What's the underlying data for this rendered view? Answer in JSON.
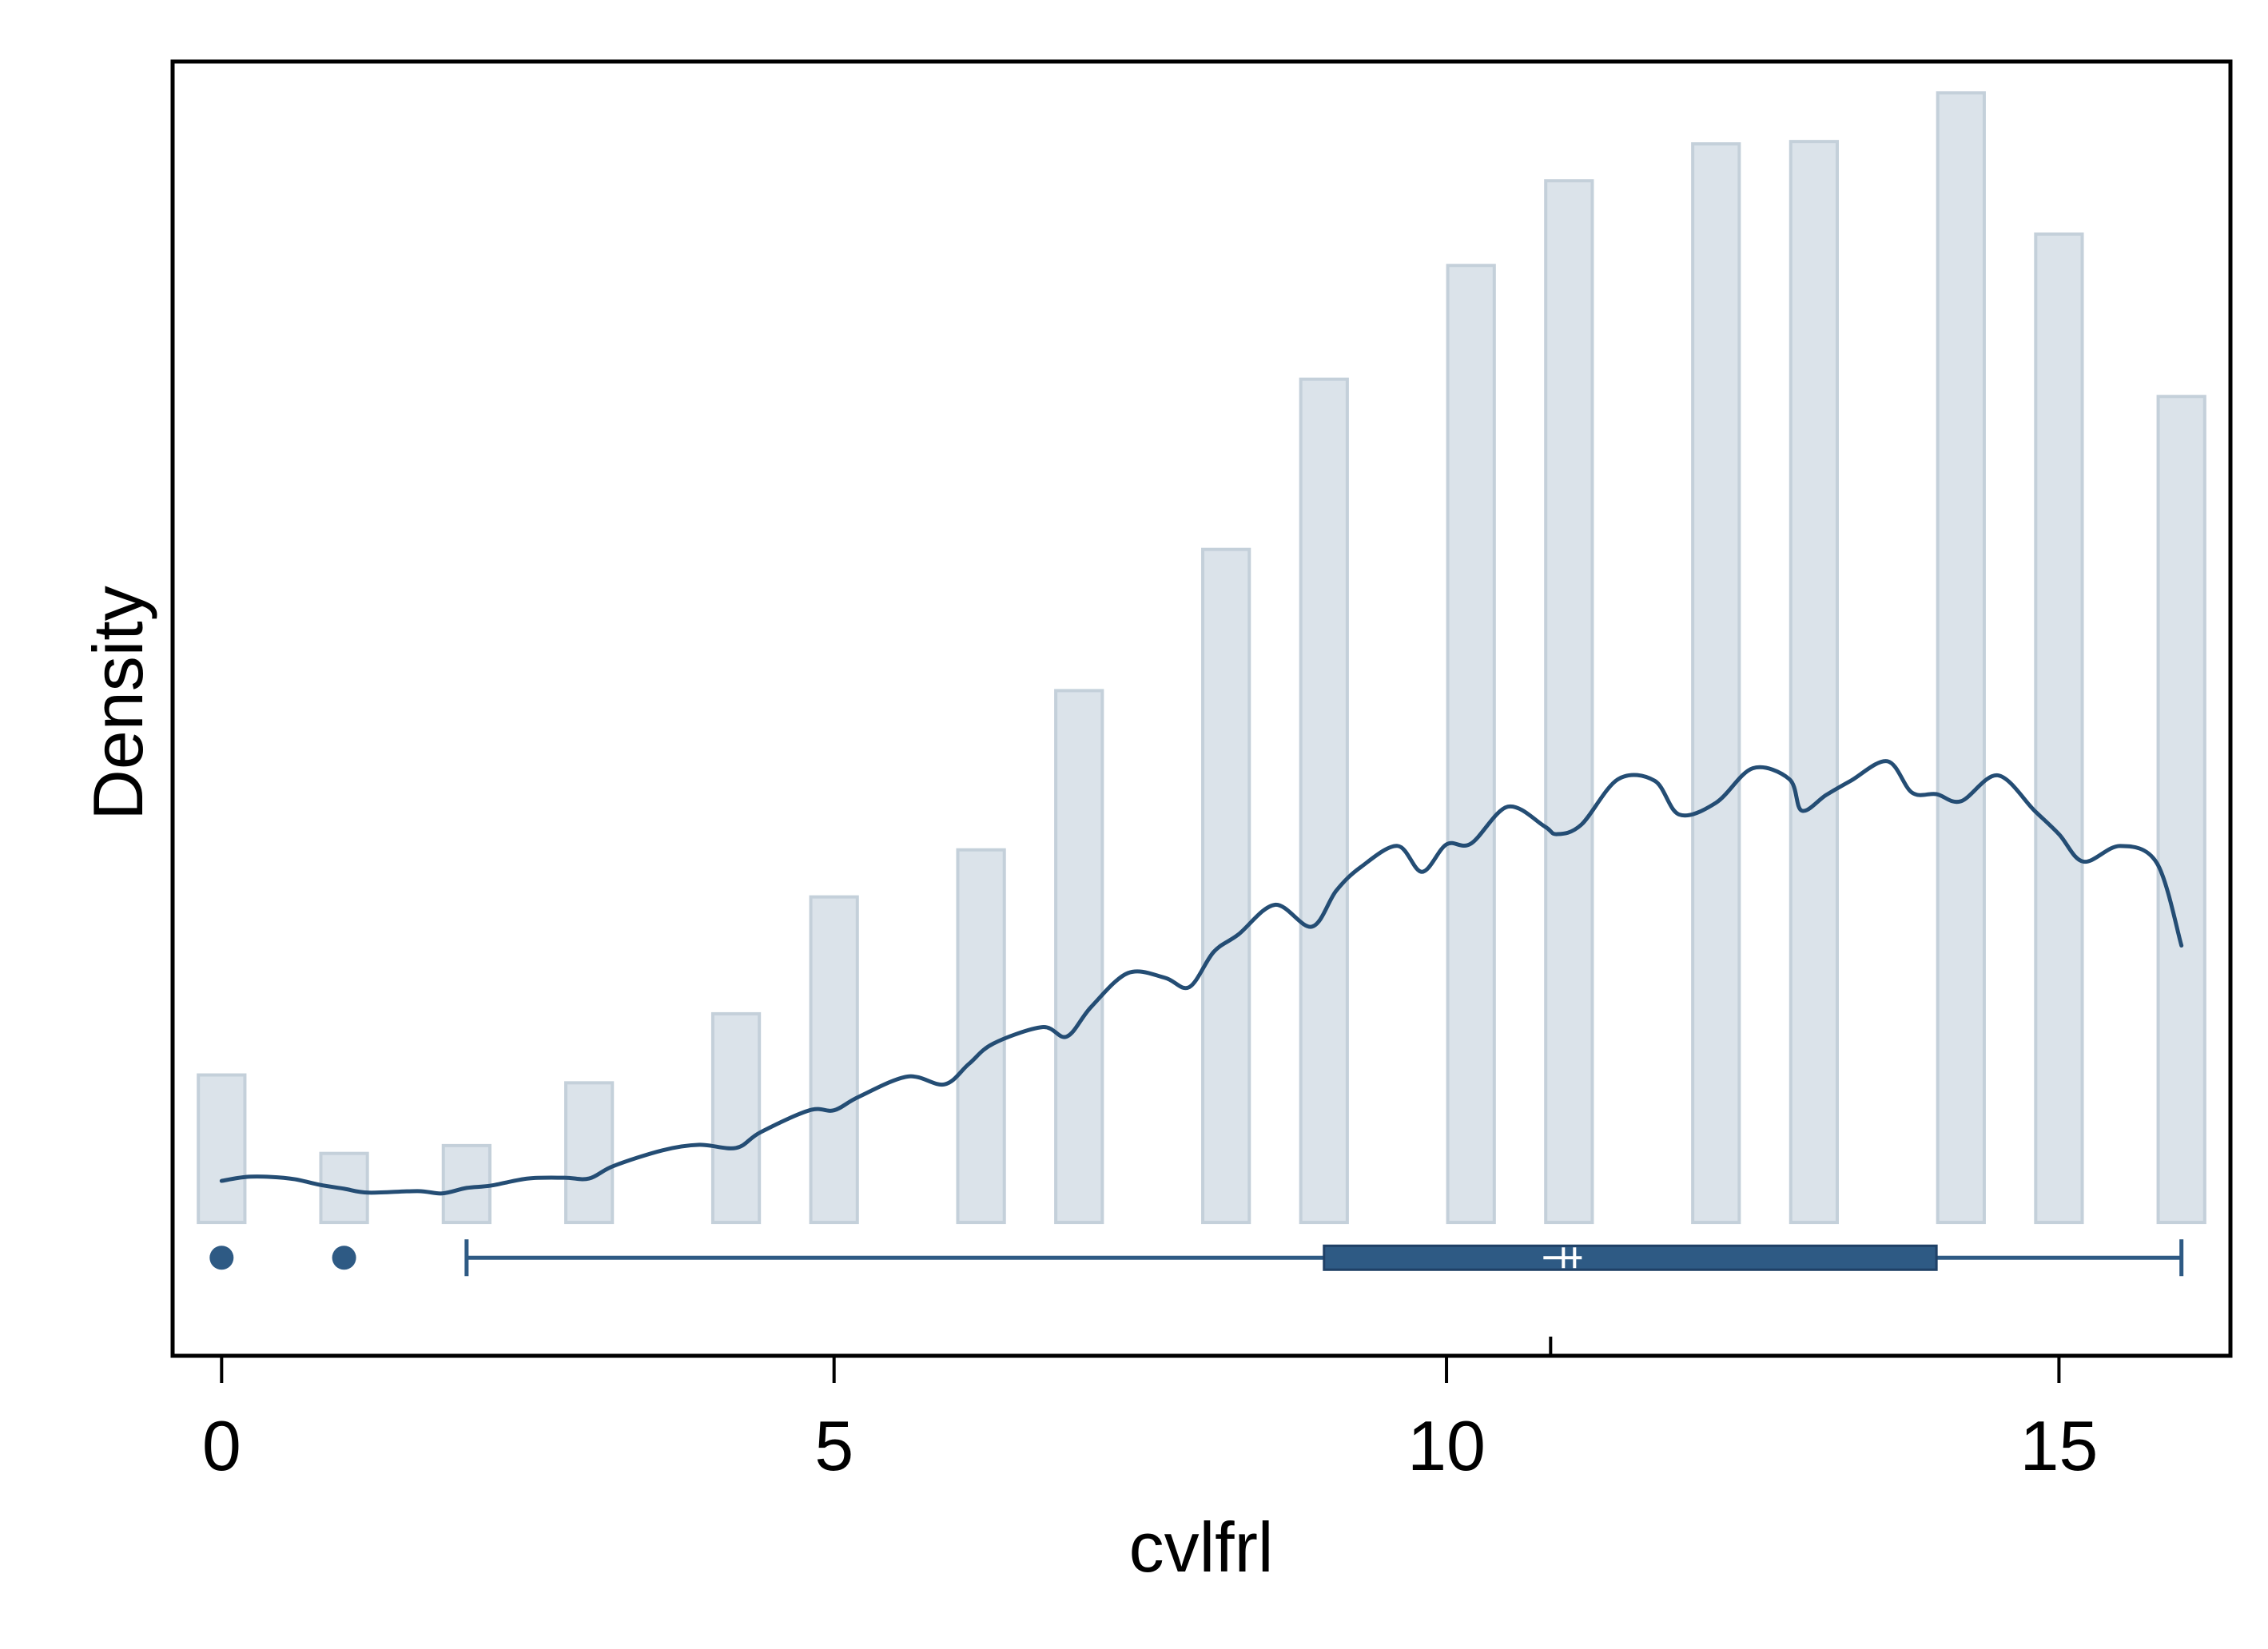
{
  "chart_data": {
    "type": "bar",
    "title": "",
    "xlabel": "cvlfrl",
    "ylabel": "Density",
    "xlim": [
      -0.4,
      16.4
    ],
    "ylim": [
      -0.017,
      0.148
    ],
    "x_ticks": [
      "0",
      "5",
      "10",
      "15"
    ],
    "x_tick_values": [
      0,
      5,
      10,
      15
    ],
    "histogram": {
      "x": [
        0,
        1,
        2,
        3,
        4.2,
        5,
        6.2,
        7,
        8.2,
        9,
        10.2,
        11,
        12.2,
        13,
        14.2,
        15,
        16
      ],
      "density": [
        0.0188,
        0.0088,
        0.0098,
        0.0178,
        0.0266,
        0.0415,
        0.0475,
        0.0678,
        0.0858,
        0.1075,
        0.122,
        0.1328,
        0.1375,
        0.1378,
        0.144,
        0.126,
        0.1053
      ],
      "fill": "#dbe3ea",
      "edge": "#c4d0da"
    },
    "density_curve": {
      "color": "#244d74",
      "points": [
        [
          0,
          0.0053
        ],
        [
          0.2,
          0.0058
        ],
        [
          0.4,
          0.0058
        ],
        [
          0.6,
          0.0055
        ],
        [
          0.8,
          0.0048
        ],
        [
          1.0,
          0.0043
        ],
        [
          1.2,
          0.0038
        ],
        [
          1.6,
          0.004
        ],
        [
          1.8,
          0.0037
        ],
        [
          2.0,
          0.0044
        ],
        [
          2.2,
          0.0047
        ],
        [
          2.5,
          0.0056
        ],
        [
          2.8,
          0.0057
        ],
        [
          3.0,
          0.0056
        ],
        [
          3.2,
          0.0072
        ],
        [
          3.6,
          0.0092
        ],
        [
          3.9,
          0.0099
        ],
        [
          4.2,
          0.0095
        ],
        [
          4.4,
          0.0115
        ],
        [
          4.8,
          0.0143
        ],
        [
          5.0,
          0.0143
        ],
        [
          5.2,
          0.016
        ],
        [
          5.6,
          0.0186
        ],
        [
          5.9,
          0.0176
        ],
        [
          6.1,
          0.0202
        ],
        [
          6.3,
          0.0228
        ],
        [
          6.7,
          0.0249
        ],
        [
          6.9,
          0.0237
        ],
        [
          7.1,
          0.0275
        ],
        [
          7.4,
          0.0318
        ],
        [
          7.7,
          0.0312
        ],
        [
          7.9,
          0.03
        ],
        [
          8.1,
          0.0345
        ],
        [
          8.3,
          0.0367
        ],
        [
          8.6,
          0.0405
        ],
        [
          8.9,
          0.0377
        ],
        [
          9.1,
          0.0423
        ],
        [
          9.3,
          0.0453
        ],
        [
          9.6,
          0.048
        ],
        [
          9.8,
          0.0447
        ],
        [
          10.0,
          0.0482
        ],
        [
          10.2,
          0.0483
        ],
        [
          10.5,
          0.053
        ],
        [
          10.8,
          0.0505
        ],
        [
          10.9,
          0.0495
        ],
        [
          11.1,
          0.0507
        ],
        [
          11.4,
          0.0565
        ],
        [
          11.7,
          0.0563
        ],
        [
          11.9,
          0.052
        ],
        [
          12.2,
          0.0535
        ],
        [
          12.5,
          0.0579
        ],
        [
          12.8,
          0.0565
        ],
        [
          12.9,
          0.0525
        ],
        [
          13.1,
          0.0545
        ],
        [
          13.3,
          0.0563
        ],
        [
          13.6,
          0.0588
        ],
        [
          13.8,
          0.0548
        ],
        [
          14.0,
          0.0546
        ],
        [
          14.2,
          0.0537
        ],
        [
          14.5,
          0.057
        ],
        [
          14.8,
          0.0525
        ],
        [
          15.0,
          0.0495
        ],
        [
          15.2,
          0.046
        ],
        [
          15.5,
          0.048
        ],
        [
          15.8,
          0.0458
        ],
        [
          16.0,
          0.0353
        ]
      ]
    },
    "boxplot": {
      "color": "#2e5a84",
      "outliers": [
        0,
        1
      ],
      "whisker_low": 2,
      "q1": 9,
      "median": 11,
      "q3": 14,
      "whisker_high": 16,
      "mean": 10.85
    }
  }
}
